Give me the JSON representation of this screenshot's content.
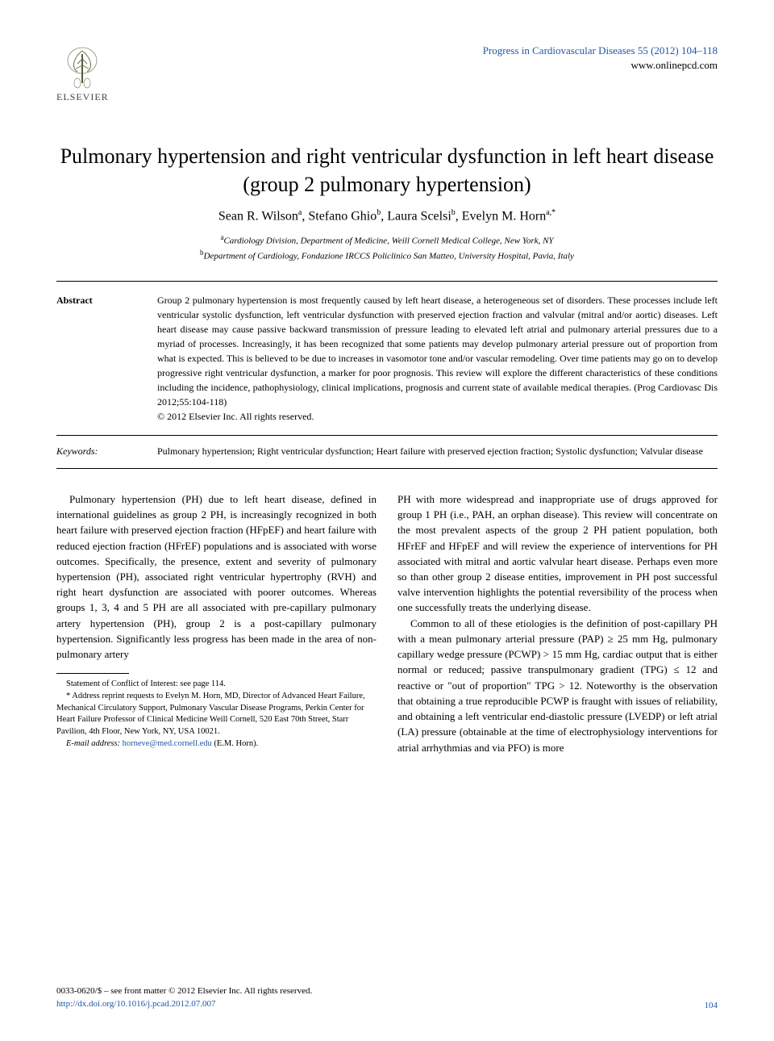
{
  "header": {
    "publisher_logo_text": "ELSEVIER",
    "journal_ref": "Progress in Cardiovascular Diseases 55 (2012) 104–118",
    "journal_site": "www.onlinepcd.com"
  },
  "title": "Pulmonary hypertension and right ventricular dysfunction in left heart disease (group 2 pulmonary hypertension)",
  "authors_html": "Sean R. Wilson<sup>a</sup>, Stefano Ghio<sup>b</sup>, Laura Scelsi<sup>b</sup>, Evelyn M. Horn<sup>a,*</sup>",
  "affiliations": [
    {
      "mark": "a",
      "text": "Cardiology Division, Department of Medicine, Weill Cornell Medical College, New York, NY"
    },
    {
      "mark": "b",
      "text": "Department of Cardiology, Fondazione IRCCS Policlinico San Matteo, University Hospital, Pavia, Italy"
    }
  ],
  "abstract": {
    "label": "Abstract",
    "text": "Group 2 pulmonary hypertension is most frequently caused by left heart disease, a heterogeneous set of disorders. These processes include left ventricular systolic dysfunction, left ventricular dysfunction with preserved ejection fraction and valvular (mitral and/or aortic) diseases. Left heart disease may cause passive backward transmission of pressure leading to elevated left atrial and pulmonary arterial pressures due to a myriad of processes. Increasingly, it has been recognized that some patients may develop pulmonary arterial pressure out of proportion from what is expected. This is believed to be due to increases in vasomotor tone and/or vascular remodeling. Over time patients may go on to develop progressive right ventricular dysfunction, a marker for poor prognosis. This review will explore the different characteristics of these conditions including the incidence, pathophysiology, clinical implications, prognosis and current state of available medical therapies. (Prog Cardiovasc Dis 2012;55:104-118)",
    "copyright": "© 2012 Elsevier Inc. All rights reserved."
  },
  "keywords": {
    "label": "Keywords:",
    "text": "Pulmonary hypertension; Right ventricular dysfunction; Heart failure with preserved ejection fraction; Systolic dysfunction; Valvular disease"
  },
  "body": {
    "left_para": "Pulmonary hypertension (PH) due to left heart disease, defined in international guidelines as group 2 PH, is increasingly recognized in both heart failure with preserved ejection fraction (HFpEF) and heart failure with reduced ejection fraction (HFrEF) populations and is associated with worse outcomes. Specifically, the presence, extent and severity of pulmonary hypertension (PH), associated right ventricular hypertrophy (RVH) and right heart dysfunction are associated with poorer outcomes. Whereas groups 1, 3, 4 and 5 PH are all associated with pre-capillary pulmonary artery hypertension (PH), group 2 is a post-capillary pulmonary hypertension. Significantly less progress has been made in the area of non-pulmonary artery",
    "right_para1": "PH with more widespread and inappropriate use of drugs approved for group 1 PH (i.e., PAH, an orphan disease). This review will concentrate on the most prevalent aspects of the group 2 PH patient population, both HFrEF and HFpEF and will review the experience of interventions for PH associated with mitral and aortic valvular heart disease. Perhaps even more so than other group 2 disease entities, improvement in PH post successful valve intervention highlights the potential reversibility of the process when one successfully treats the underlying disease.",
    "right_para2": "Common to all of these etiologies is the definition of post-capillary PH with a mean pulmonary arterial pressure (PAP) ≥ 25 mm Hg, pulmonary capillary wedge pressure (PCWP) > 15 mm Hg, cardiac output that is either normal or reduced; passive transpulmonary gradient (TPG) ≤ 12 and reactive or \"out of proportion\" TPG > 12. Noteworthy is the observation that obtaining a true reproducible PCWP is fraught with issues of reliability, and obtaining a left ventricular end-diastolic pressure (LVEDP) or left atrial (LA) pressure (obtainable at the time of electrophysiology interventions for atrial arrhythmias and via PFO) is more"
  },
  "footnotes": {
    "conflict": "Statement of Conflict of Interest: see page 114.",
    "correspondence": "* Address reprint requests to Evelyn M. Horn, MD, Director of Advanced Heart Failure, Mechanical Circulatory Support, Pulmonary Vascular Disease Programs, Perkin Center for Heart Failure Professor of Clinical Medicine Weill Cornell, 520 East 70th Street, Starr Pavilion, 4th Floor, New York, NY, USA 10021.",
    "email_label": "E-mail address:",
    "email": "horneve@med.cornell.edu",
    "email_person": "(E.M. Horn)."
  },
  "footer": {
    "rights": "0033-0620/$ – see front matter © 2012 Elsevier Inc. All rights reserved.",
    "doi": "http://dx.doi.org/10.1016/j.pcad.2012.07.007",
    "page": "104"
  },
  "colors": {
    "link": "#2156a5",
    "text": "#000000",
    "bg": "#ffffff"
  }
}
